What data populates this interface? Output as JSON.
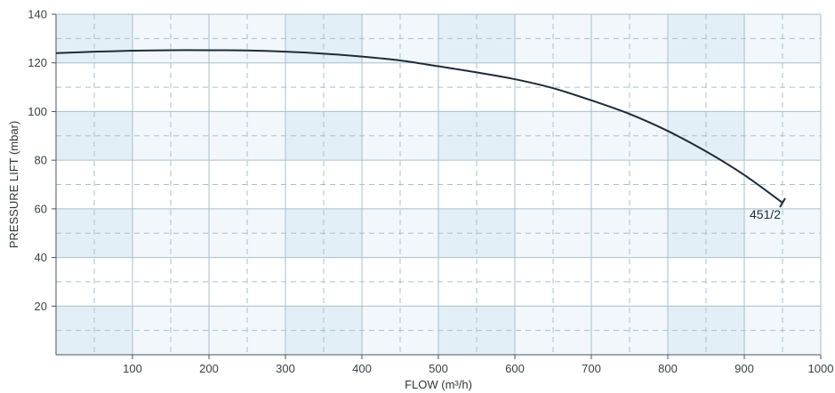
{
  "chart_data": {
    "type": "line",
    "xlabel": "FLOW (m³/h)",
    "ylabel": "PRESSURE LIFT (mbar)",
    "xlim": [
      0,
      1000
    ],
    "ylim": [
      0,
      140
    ],
    "x_ticks": [
      100,
      200,
      300,
      400,
      500,
      600,
      700,
      800,
      900,
      1000
    ],
    "y_ticks": [
      20,
      40,
      60,
      80,
      100,
      120,
      140
    ],
    "x_minor_step": 50,
    "y_minor_step": 10,
    "grid": true,
    "colors": {
      "band_dark": "#e3eff6",
      "band_light": "#f1f7fa",
      "grid_major": "#a8bfcc",
      "grid_minor": "#a9c0cc",
      "curve": "#1d2b39",
      "axis": "#4a5560"
    },
    "series": [
      {
        "name": "451/2",
        "x": [
          0,
          50,
          100,
          150,
          200,
          250,
          300,
          350,
          400,
          450,
          500,
          550,
          600,
          650,
          700,
          750,
          800,
          850,
          900,
          950
        ],
        "y": [
          124,
          124.6,
          125,
          125.2,
          125.2,
          125.1,
          124.6,
          123.8,
          122.6,
          121,
          118.6,
          116.1,
          113.3,
          109.6,
          104.6,
          99,
          92,
          83.6,
          73.9,
          62.5
        ]
      }
    ]
  }
}
